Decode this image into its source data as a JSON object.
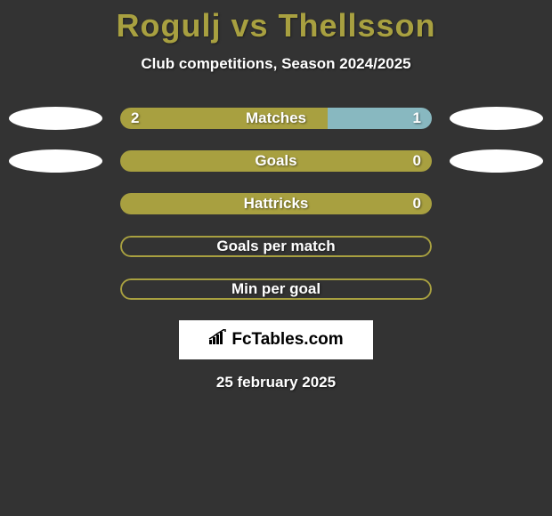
{
  "title": "Rogulj vs Thellsson",
  "subtitle": "Club competitions, Season 2024/2025",
  "colors": {
    "background": "#333333",
    "accent": "#a8a040",
    "secondary": "#88b8c0",
    "text": "#ffffff"
  },
  "stats": [
    {
      "label": "Matches",
      "left_value": "2",
      "right_value": "1",
      "left_pct": 66.7,
      "right_pct": 33.3,
      "show_left_ellipse": true,
      "show_right_ellipse": true,
      "style": "split"
    },
    {
      "label": "Goals",
      "left_value": "",
      "right_value": "0",
      "left_pct": 100,
      "right_pct": 0,
      "show_left_ellipse": true,
      "show_right_ellipse": true,
      "style": "full"
    },
    {
      "label": "Hattricks",
      "left_value": "",
      "right_value": "0",
      "left_pct": 100,
      "right_pct": 0,
      "show_left_ellipse": false,
      "show_right_ellipse": false,
      "style": "full"
    },
    {
      "label": "Goals per match",
      "left_value": "",
      "right_value": "",
      "left_pct": 0,
      "right_pct": 0,
      "show_left_ellipse": false,
      "show_right_ellipse": false,
      "style": "empty"
    },
    {
      "label": "Min per goal",
      "left_value": "",
      "right_value": "",
      "left_pct": 0,
      "right_pct": 0,
      "show_left_ellipse": false,
      "show_right_ellipse": false,
      "style": "empty"
    }
  ],
  "logo": "FcTables.com",
  "date": "25 february 2025"
}
